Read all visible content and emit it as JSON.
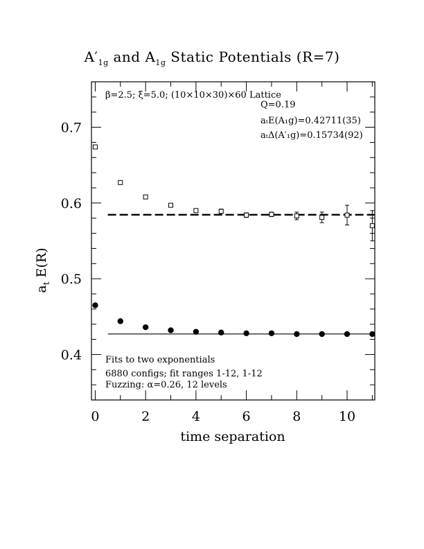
{
  "title_main": "A",
  "title_prime": "′",
  "title_sub1": "1g",
  "title_and": " and A",
  "title_sub2": "1g",
  "title_rest": " Static Potentials (R=7)",
  "chart_data": {
    "type": "scatter",
    "xlabel": "time separation",
    "ylabel_main": "a",
    "ylabel_sub": "t",
    "ylabel_rest": " E(R)",
    "xlim": [
      -0.15,
      11.1
    ],
    "ylim": [
      0.34,
      0.76
    ],
    "xticks": [
      0,
      2,
      4,
      6,
      8,
      10
    ],
    "xtick_labels": [
      "0",
      "2",
      "4",
      "6",
      "8",
      "10"
    ],
    "yticks": [
      0.4,
      0.5,
      0.6,
      0.7
    ],
    "ytick_labels": [
      "0.4",
      "0.5",
      "0.6",
      "0.7"
    ],
    "annotations": {
      "lattice": "β=2.5; ξ=5.0; (10×10×30)×60 Lattice",
      "q": "Q=0.19",
      "energy": "aₜE(A₁g)=0.42711(35)",
      "delta": "aₜΔ(A′₁g)=0.15734(92)",
      "fits": "Fits to two exponentials",
      "configs": "6880 configs; fit ranges 1-12, 1-12",
      "fuzzing": "Fuzzing: α=0.26, 12 levels"
    },
    "series": [
      {
        "marker": "open-square",
        "x": [
          0,
          1,
          2,
          3,
          4,
          5,
          6,
          7,
          8,
          9,
          10,
          11
        ],
        "y": [
          0.674,
          0.627,
          0.608,
          0.597,
          0.59,
          0.589,
          0.584,
          0.585,
          0.583,
          0.581,
          0.584,
          0.57
        ],
        "err": [
          0.002,
          0.002,
          0.002,
          0.002,
          0.002,
          0.003,
          0.003,
          0.003,
          0.005,
          0.007,
          0.013,
          0.02
        ]
      },
      {
        "marker": "filled-circle",
        "x": [
          0,
          1,
          2,
          3,
          4,
          5,
          6,
          7,
          8,
          9,
          10,
          11
        ],
        "y": [
          0.465,
          0.444,
          0.436,
          0.432,
          0.43,
          0.429,
          0.428,
          0.428,
          0.427,
          0.427,
          0.427,
          0.427
        ],
        "err": [
          0,
          0,
          0,
          0,
          0,
          0,
          0,
          0,
          0,
          0,
          0,
          0
        ]
      }
    ],
    "fit_lines": [
      {
        "style": "dashed",
        "y": 0.5845,
        "x_range": [
          0.5,
          11.1
        ]
      },
      {
        "style": "solid",
        "y": 0.4271,
        "x_range": [
          0.5,
          11.1
        ]
      }
    ]
  }
}
